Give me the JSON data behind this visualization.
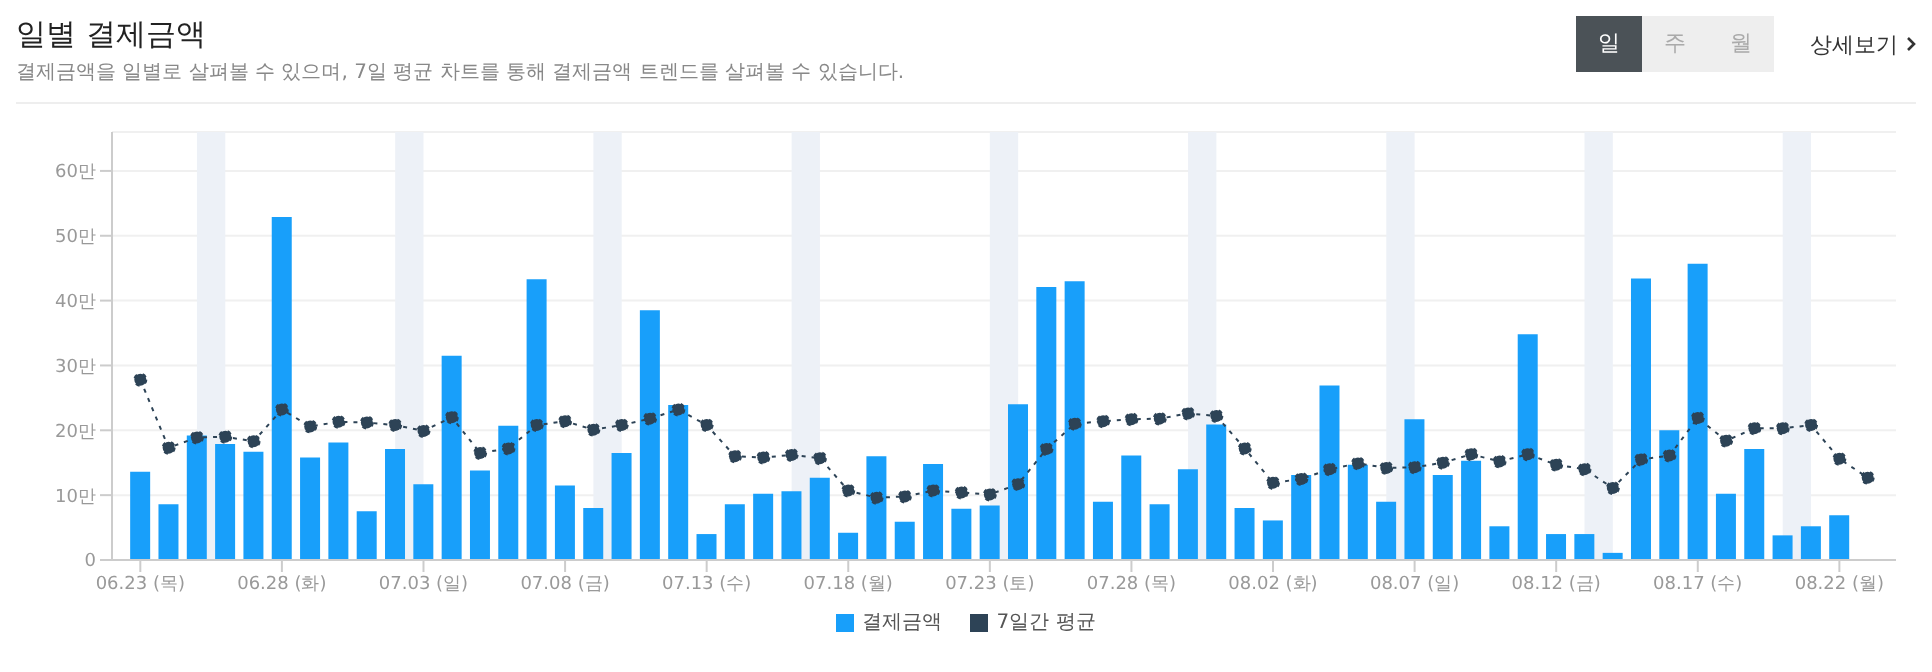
{
  "chart_data": {
    "type": "bar",
    "title": "일별 결제금액",
    "subtitle": "결제금액을 일별로 살펴볼 수 있으며, 7일 평균 차트를 통해 결제금액 트렌드를 살펴볼 수 있습니다.",
    "annotations": [
      "일",
      "주",
      "월",
      "상세보기"
    ],
    "x": [
      "--06-23",
      "--06-24",
      "--06-25",
      "--06-26",
      "--06-27",
      "--06-28",
      "--06-29",
      "--06-30",
      "--07-01",
      "--07-02",
      "--07-03",
      "--07-04",
      "--07-05",
      "--07-06",
      "--07-07",
      "--07-08",
      "--07-09",
      "--07-10",
      "--07-11",
      "--07-12",
      "--07-13",
      "--07-14",
      "--07-15",
      "--07-16",
      "--07-17",
      "--07-18",
      "--07-19",
      "--07-20",
      "--07-21",
      "--07-22",
      "--07-23",
      "--07-24",
      "--07-25",
      "--07-26",
      "--07-27",
      "--07-28",
      "--07-29",
      "--07-30",
      "--07-31",
      "--08-01",
      "--08-02",
      "--08-03",
      "--08-04",
      "--08-05",
      "--08-06",
      "--08-07",
      "--08-08",
      "--08-09",
      "--08-10",
      "--08-11",
      "--08-12",
      "--08-13",
      "--08-14",
      "--08-15",
      "--08-16",
      "--08-17",
      "--08-18",
      "--08-19",
      "--08-20",
      "--08-21",
      "--08-22",
      "--08-23"
    ],
    "xlim": [
      "--06-22",
      "--08-24"
    ],
    "xticks": [
      {
        "value": "--06-23",
        "label": "06.23 (목)"
      },
      {
        "value": "--06-28",
        "label": "06.28 (화)"
      },
      {
        "value": "--07-03",
        "label": "07.03 (일)"
      },
      {
        "value": "--07-08",
        "label": "07.08 (금)"
      },
      {
        "value": "--07-13",
        "label": "07.13 (수)"
      },
      {
        "value": "--07-18",
        "label": "07.18 (월)"
      },
      {
        "value": "--07-23",
        "label": "07.23 (토)"
      },
      {
        "value": "--07-28",
        "label": "07.28 (목)"
      },
      {
        "value": "--08-02",
        "label": "08.02 (화)"
      },
      {
        "value": "--08-07",
        "label": "08.07 (일)"
      },
      {
        "value": "--08-12",
        "label": "08.12 (금)"
      },
      {
        "value": "--08-17",
        "label": "08.17 (수)"
      },
      {
        "value": "--08-22",
        "label": "08.22 (월)"
      }
    ],
    "ylim": [
      0,
      66
    ],
    "yticks": [
      0,
      {
        "value": 10,
        "label": "10만"
      },
      {
        "value": 20,
        "label": "20만"
      },
      {
        "value": 30,
        "label": "30만"
      },
      {
        "value": 40,
        "label": "40만"
      },
      {
        "value": 50,
        "label": "50만"
      },
      {
        "value": 60,
        "label": "60만"
      }
    ],
    "grid": "y",
    "legend": "bottom",
    "bands": [
      {
        "axis": "x",
        "from": "--06-25",
        "to": "--06-26",
        "color": "#edf1f7"
      },
      {
        "axis": "x",
        "from": "--07-02",
        "to": "--07-03",
        "color": "#edf1f7"
      },
      {
        "axis": "x",
        "from": "--07-09",
        "to": "--07-10",
        "color": "#edf1f7"
      },
      {
        "axis": "x",
        "from": "--07-16",
        "to": "--07-17",
        "color": "#edf1f7"
      },
      {
        "axis": "x",
        "from": "--07-23",
        "to": "--07-24",
        "color": "#edf1f7"
      },
      {
        "axis": "x",
        "from": "--07-30",
        "to": "--07-31",
        "color": "#edf1f7"
      },
      {
        "axis": "x",
        "from": "--08-06",
        "to": "--08-07",
        "color": "#edf1f7"
      },
      {
        "axis": "x",
        "from": "--08-13",
        "to": "--08-14",
        "color": "#edf1f7"
      },
      {
        "axis": "x",
        "from": "--08-20",
        "to": "--08-21",
        "color": "#edf1f7"
      }
    ],
    "series": [
      {
        "name": "결제금액",
        "color": "#189ffa",
        "values": [
          13.6,
          8.6,
          19.2,
          17.9,
          16.7,
          52.9,
          15.8,
          18.1,
          7.5,
          17.1,
          11.7,
          31.5,
          13.8,
          20.7,
          43.3,
          11.5,
          8.0,
          16.5,
          38.5,
          23.9,
          4.0,
          8.6,
          10.2,
          10.6,
          12.7,
          4.2,
          16.0,
          5.9,
          14.8,
          7.9,
          8.4,
          24.0,
          42.1,
          43.0,
          9.0,
          16.1,
          8.6,
          14.0,
          20.9,
          8.0,
          6.1,
          13.1,
          26.9,
          14.7,
          9.0,
          21.7,
          13.1,
          15.3,
          5.2,
          34.8,
          4.0,
          4.0,
          1.1,
          43.4,
          20.0,
          45.7,
          10.2,
          17.1,
          3.8,
          5.2,
          6.9,
          null
        ]
      },
      {
        "name": "7일간 평균",
        "type": "line",
        "color": "#2d4356",
        "line_style": "dotted",
        "marker": "circle",
        "values": [
          27.8,
          17.3,
          18.9,
          19.0,
          18.3,
          23.2,
          20.6,
          21.3,
          21.2,
          20.8,
          19.9,
          22.0,
          16.5,
          17.2,
          20.8,
          21.4,
          20.1,
          20.8,
          21.8,
          23.2,
          20.8,
          16.0,
          15.8,
          16.2,
          15.7,
          10.7,
          9.6,
          9.8,
          10.7,
          10.4,
          10.1,
          11.7,
          17.1,
          21.0,
          21.4,
          21.7,
          21.8,
          22.6,
          22.2,
          17.2,
          11.9,
          12.5,
          14.0,
          14.9,
          14.2,
          14.3,
          15.0,
          16.3,
          15.2,
          16.3,
          14.7,
          14.0,
          11.1,
          15.5,
          16.1,
          21.9,
          18.4,
          20.3,
          20.3,
          20.8,
          15.6,
          12.7
        ]
      }
    ]
  }
}
